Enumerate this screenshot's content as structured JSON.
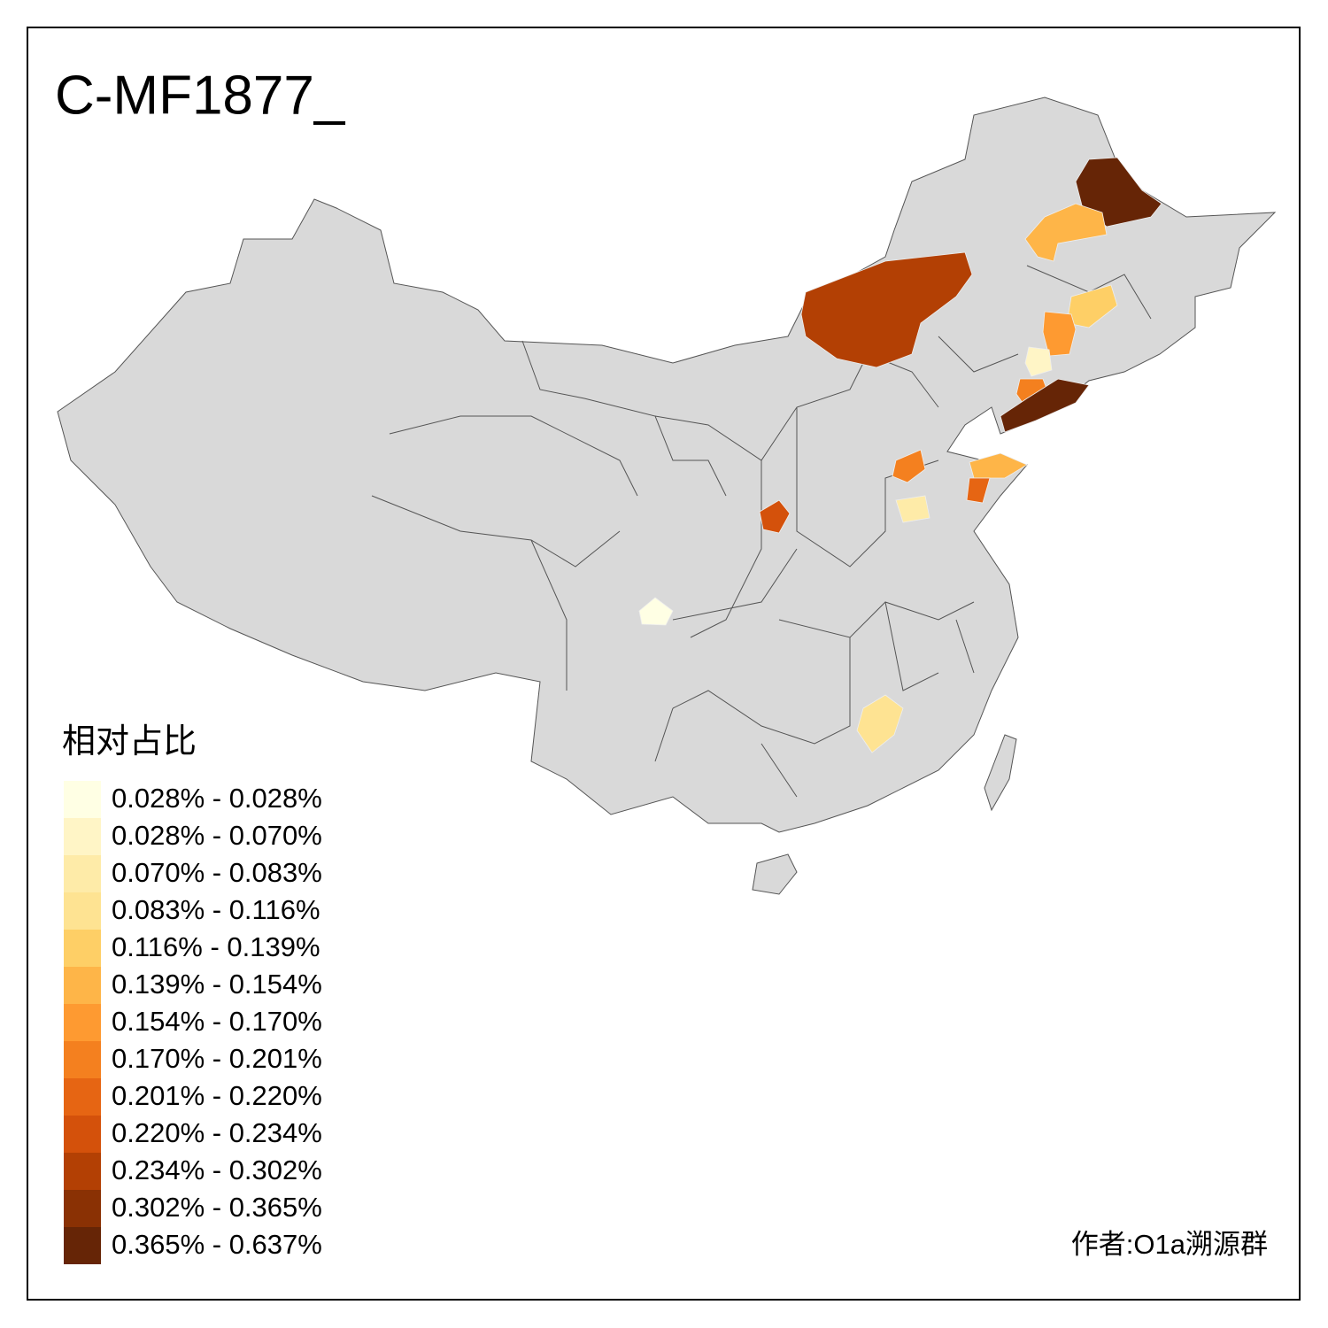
{
  "title": "C-MF1877_",
  "legend": {
    "title": "相对占比",
    "items": [
      {
        "label": "0.028% - 0.028%",
        "color": "#ffffe4"
      },
      {
        "label": "0.028% - 0.070%",
        "color": "#fff5c6"
      },
      {
        "label": "0.070% - 0.083%",
        "color": "#feeba8"
      },
      {
        "label": "0.083% - 0.116%",
        "color": "#fee392"
      },
      {
        "label": "0.116% - 0.139%",
        "color": "#fecf66"
      },
      {
        "label": "0.139% - 0.154%",
        "color": "#feb548"
      },
      {
        "label": "0.154% - 0.170%",
        "color": "#fe9a31"
      },
      {
        "label": "0.170% - 0.201%",
        "color": "#f4801f"
      },
      {
        "label": "0.201% - 0.220%",
        "color": "#e66513"
      },
      {
        "label": "0.220% - 0.234%",
        "color": "#d4510b"
      },
      {
        "label": "0.234% - 0.302%",
        "color": "#b34004"
      },
      {
        "label": "0.302% - 0.365%",
        "color": "#8a3104"
      },
      {
        "label": "0.365% - 0.637%",
        "color": "#662506"
      }
    ]
  },
  "credit": "作者:O1a溯源群"
}
